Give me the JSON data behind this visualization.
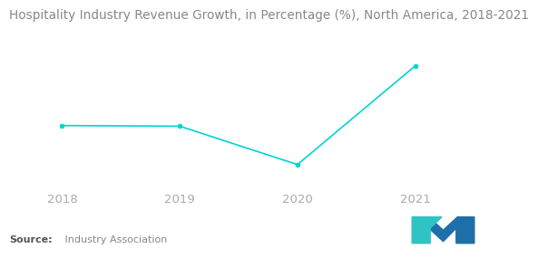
{
  "title": "Hospitality Industry Revenue Growth, in Percentage (%), North America, 2018-2021",
  "x": [
    2018,
    2019,
    2020,
    2021
  ],
  "y": [
    5.5,
    4.8,
    -38,
    72
  ],
  "line_color": "#00D4D4",
  "marker": "o",
  "marker_size": 3.5,
  "marker_color": "#00D4D4",
  "background_color": "#ffffff",
  "source_bold": "Source:",
  "source_text": " Industry Association",
  "title_fontsize": 9.8,
  "source_fontsize": 8.0,
  "xlim": [
    2017.55,
    2021.45
  ],
  "ylim": [
    -65,
    100
  ],
  "tick_color": "#aaaaaa",
  "tick_fontsize": 9.5
}
